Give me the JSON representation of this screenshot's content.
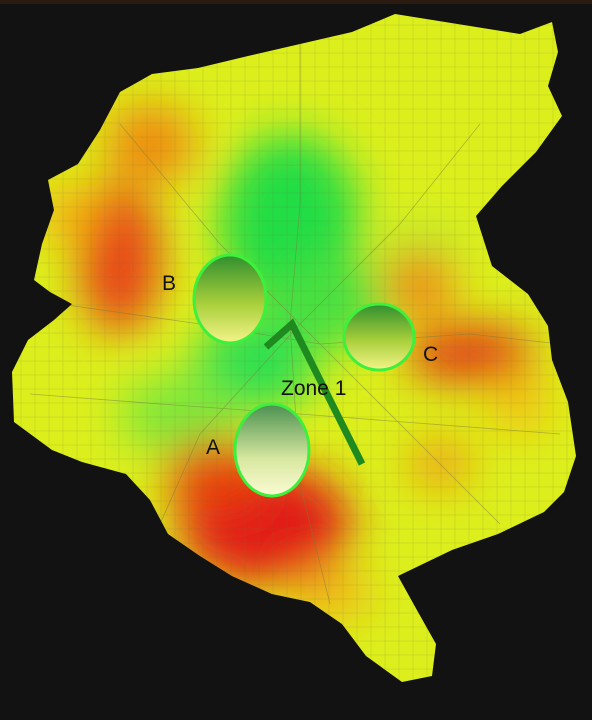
{
  "map": {
    "background_color": "#121212",
    "heat_colors": {
      "low": "#22dd44",
      "medium": "#eaf200",
      "high": "#e21d14"
    },
    "zones": [
      {
        "id": "A",
        "label": "A"
      },
      {
        "id": "B",
        "label": "B"
      },
      {
        "id": "C",
        "label": "C"
      }
    ],
    "route": {
      "label": "Zone 1",
      "color": "#1f8a1f"
    },
    "zone_outline_color": "#3cf03c"
  }
}
